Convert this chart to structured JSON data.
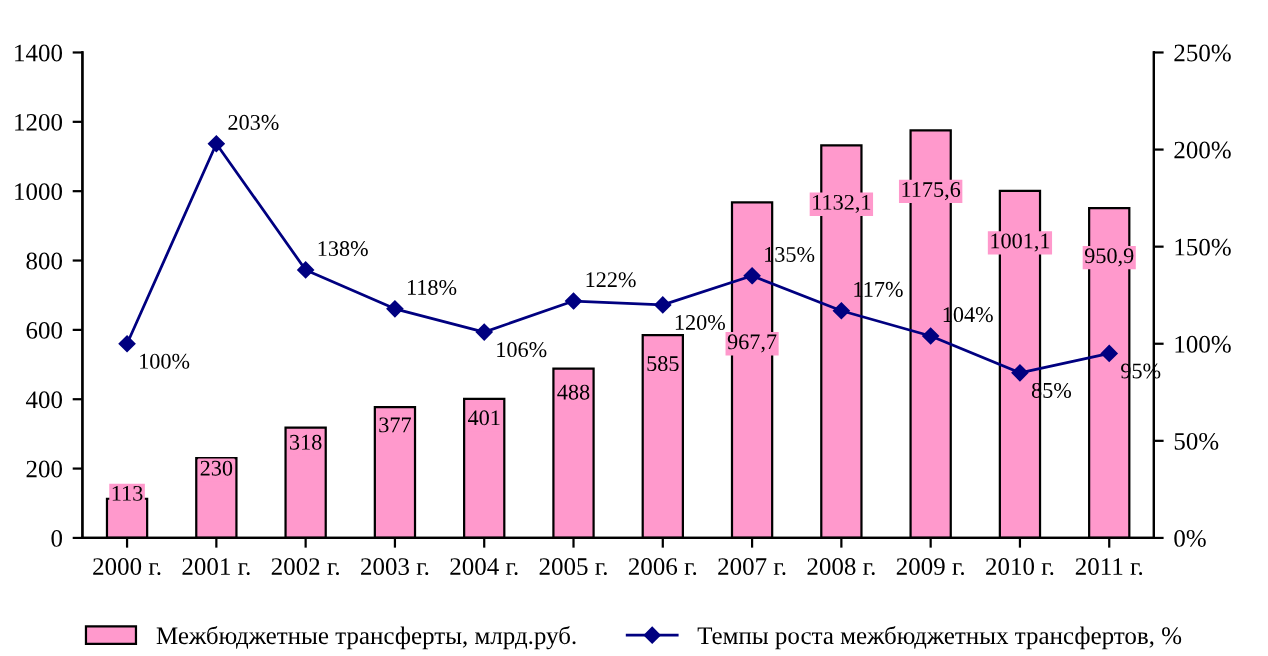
{
  "chart_data": {
    "type": "bar",
    "categories": [
      "2000 г.",
      "2001 г.",
      "2002 г.",
      "2003 г.",
      "2004 г.",
      "2005 г.",
      "2006 г.",
      "2007 г.",
      "2008 г.",
      "2009 г.",
      "2010 г.",
      "2011 г."
    ],
    "series": [
      {
        "name": "Межбюджетные трансферты, млрд.руб.",
        "color": "#ff99cc",
        "values": [
          113,
          230,
          318,
          377,
          401,
          488,
          585,
          967.7,
          1132.1,
          1175.6,
          1001.1,
          950.9
        ],
        "value_labels": [
          "113",
          "230",
          "318",
          "377",
          "401",
          "488",
          "585",
          "967,7",
          "1132,1",
          "1175,6",
          "1001,1",
          "950,9"
        ]
      },
      {
        "name": "Темпы роста межбюджетных трансфертов, %",
        "type": "line",
        "axis": "y2",
        "color": "#000080",
        "marker": "diamond",
        "values": [
          100,
          203,
          138,
          118,
          106,
          122,
          120,
          135,
          117,
          104,
          85,
          95
        ],
        "value_labels": [
          "100%",
          "203%",
          "138%",
          "118%",
          "106%",
          "122%",
          "120%",
          "135%",
          "117%",
          "104%",
          "85%",
          "95%"
        ]
      }
    ],
    "ylim": [
      0,
      1400
    ],
    "yticks": [
      0,
      200,
      400,
      600,
      800,
      1000,
      1200,
      1400
    ],
    "y2lim": [
      0,
      250
    ],
    "y2ticks": [
      {
        "value": 0,
        "label": "0%"
      },
      {
        "value": 50,
        "label": "50%"
      },
      {
        "value": 100,
        "label": "100%"
      },
      {
        "value": 150,
        "label": "150%"
      },
      {
        "value": 200,
        "label": "200%"
      },
      {
        "value": 250,
        "label": "250%"
      }
    ],
    "grid": false,
    "legend": "bottom"
  }
}
